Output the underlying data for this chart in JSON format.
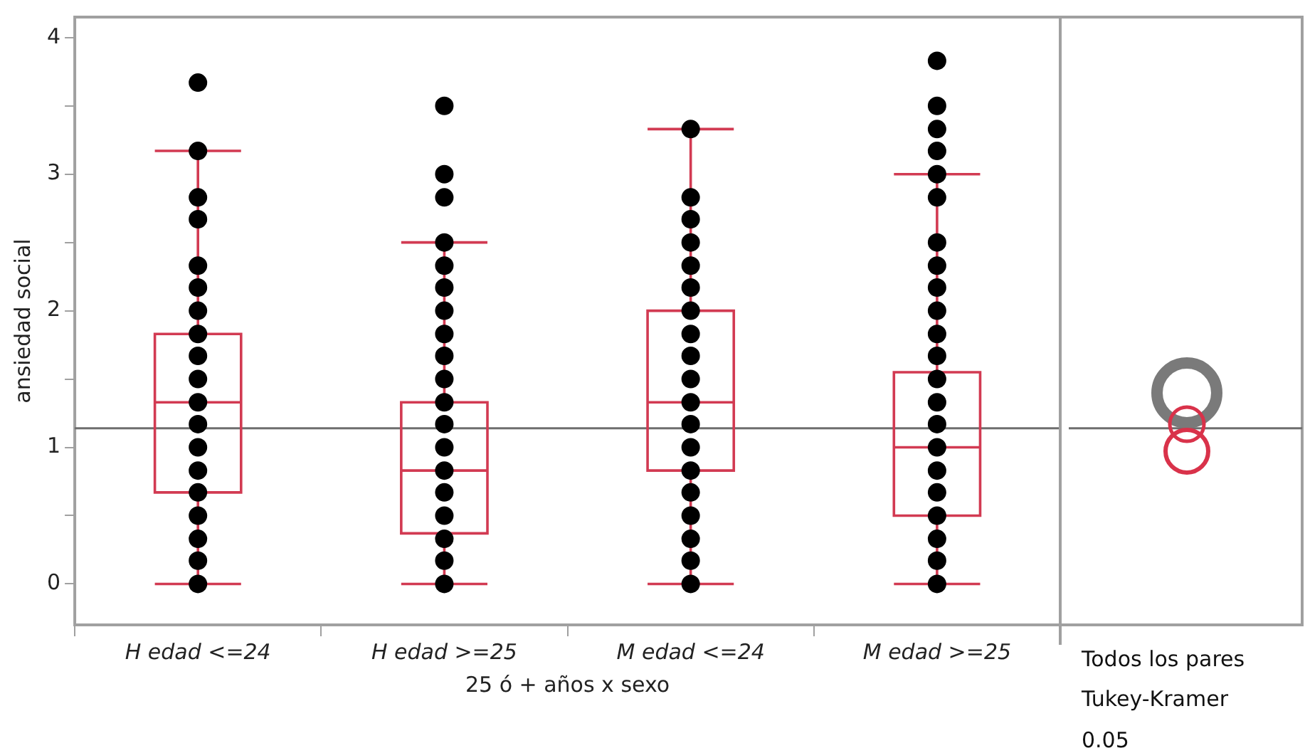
{
  "chart_data": {
    "type": "box",
    "categories": [
      "H edad <=24",
      "H edad >=25",
      "M edad <=24",
      "M edad >=25"
    ],
    "xlabel": "25 ó + años x sexo",
    "ylabel": "ansiedad social",
    "color": "#d23a52",
    "boxes": [
      {
        "low": 0,
        "q1": 0.67,
        "median": 1.33,
        "q3": 1.83,
        "high": 3.17
      },
      {
        "low": 0,
        "q1": 0.37,
        "median": 0.83,
        "q3": 1.33,
        "high": 2.5
      },
      {
        "low": 0,
        "q1": 0.83,
        "median": 1.33,
        "q3": 2.0,
        "high": 3.33
      },
      {
        "low": 0,
        "q1": 0.5,
        "median": 1.0,
        "q3": 1.55,
        "high": 3.0
      }
    ],
    "series": [
      {
        "type": "scatter",
        "color": "#000000",
        "x": [
          "H edad <=24",
          "H edad <=24",
          "H edad <=24",
          "H edad <=24",
          "H edad <=24",
          "H edad <=24",
          "H edad <=24",
          "H edad <=24",
          "H edad <=24",
          "H edad <=24",
          "H edad <=24",
          "H edad <=24",
          "H edad <=24",
          "H edad <=24",
          "H edad <=24",
          "H edad <=24",
          "H edad <=24",
          "H edad <=24",
          "H edad <=24"
        ],
        "values": [
          0,
          0.17,
          0.33,
          0.5,
          0.67,
          0.83,
          1,
          1.17,
          1.33,
          1.5,
          1.67,
          1.83,
          2,
          2.17,
          2.33,
          2.67,
          2.83,
          3.17,
          3.67
        ]
      },
      {
        "type": "scatter",
        "color": "#000000",
        "x": [
          "H edad >=25",
          "H edad >=25",
          "H edad >=25",
          "H edad >=25",
          "H edad >=25",
          "H edad >=25",
          "H edad >=25",
          "H edad >=25",
          "H edad >=25",
          "H edad >=25",
          "H edad >=25",
          "H edad >=25",
          "H edad >=25",
          "H edad >=25",
          "H edad >=25",
          "H edad >=25",
          "H edad >=25",
          "H edad >=25",
          "H edad >=25"
        ],
        "values": [
          0,
          0.17,
          0.33,
          0.5,
          0.67,
          0.83,
          1,
          1.17,
          1.33,
          1.5,
          1.67,
          1.83,
          2,
          2.17,
          2.33,
          2.5,
          2.83,
          3,
          3.5
        ]
      },
      {
        "type": "scatter",
        "color": "#000000",
        "x": [
          "M edad <=24",
          "M edad <=24",
          "M edad <=24",
          "M edad <=24",
          "M edad <=24",
          "M edad <=24",
          "M edad <=24",
          "M edad <=24",
          "M edad <=24",
          "M edad <=24",
          "M edad <=24",
          "M edad <=24",
          "M edad <=24",
          "M edad <=24",
          "M edad <=24",
          "M edad <=24",
          "M edad <=24",
          "M edad <=24",
          "M edad <=24"
        ],
        "values": [
          0,
          0.17,
          0.33,
          0.5,
          0.67,
          0.83,
          1,
          1.17,
          1.33,
          1.5,
          1.67,
          1.83,
          2,
          2.17,
          2.33,
          2.5,
          2.67,
          2.83,
          3.33
        ]
      },
      {
        "type": "scatter",
        "color": "#000000",
        "x": [
          "M edad >=25",
          "M edad >=25",
          "M edad >=25",
          "M edad >=25",
          "M edad >=25",
          "M edad >=25",
          "M edad >=25",
          "M edad >=25",
          "M edad >=25",
          "M edad >=25",
          "M edad >=25",
          "M edad >=25",
          "M edad >=25",
          "M edad >=25",
          "M edad >=25",
          "M edad >=25",
          "M edad >=25",
          "M edad >=25",
          "M edad >=25",
          "M edad >=25",
          "M edad >=25",
          "M edad >=25"
        ],
        "values": [
          0,
          0.17,
          0.33,
          0.5,
          0.67,
          0.83,
          1,
          1.17,
          1.33,
          1.5,
          1.67,
          1.83,
          2,
          2.17,
          2.33,
          2.5,
          2.83,
          3,
          3.17,
          3.33,
          3.5,
          3.83
        ]
      }
    ],
    "ylim": [
      -0.3,
      4.15
    ],
    "yticks": [
      0,
      {
        "value": 0.5,
        "label": null
      },
      1,
      {
        "value": 1.5,
        "label": null
      },
      2,
      {
        "value": 2.5,
        "label": null
      },
      3,
      {
        "value": 3.5,
        "label": null
      },
      4
    ],
    "ref_lines": [
      {
        "axis": "y",
        "value": 1.14,
        "color": "#6e6e6e"
      }
    ],
    "annotations": [
      "Todos los pares",
      "Tukey-Kramer",
      "0.05"
    ],
    "grid": false,
    "legend": false,
    "marker": "circle"
  }
}
